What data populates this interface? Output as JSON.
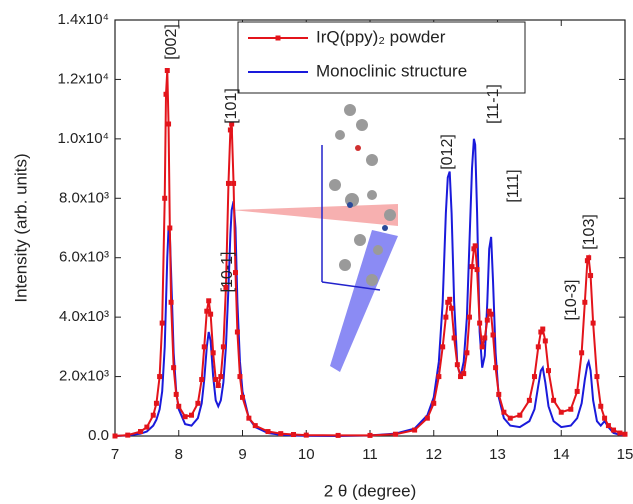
{
  "chart_data": {
    "type": "line",
    "xlabel": "2 θ (degree)",
    "ylabel": "Intensity (arb. units)",
    "x": [
      7.0,
      7.2,
      7.4,
      7.5,
      7.6,
      7.65,
      7.7,
      7.74,
      7.78,
      7.8,
      7.82,
      7.84,
      7.86,
      7.88,
      7.92,
      7.96,
      8.0,
      8.1,
      8.2,
      8.3,
      8.36,
      8.4,
      8.44,
      8.47,
      8.5,
      8.54,
      8.58,
      8.62,
      8.66,
      8.7,
      8.74,
      8.78,
      8.81,
      8.83,
      8.86,
      8.89,
      8.92,
      8.96,
      9.0,
      9.1,
      9.2,
      9.4,
      9.6,
      9.8,
      10.0,
      10.5,
      11.0,
      11.4,
      11.7,
      11.9,
      12.0,
      12.08,
      12.14,
      12.19,
      12.22,
      12.25,
      12.28,
      12.32,
      12.37,
      12.42,
      12.47,
      12.52,
      12.56,
      12.6,
      12.63,
      12.65,
      12.68,
      12.72,
      12.76,
      12.8,
      12.84,
      12.87,
      12.9,
      12.93,
      12.97,
      13.02,
      13.1,
      13.2,
      13.35,
      13.5,
      13.58,
      13.64,
      13.68,
      13.71,
      13.75,
      13.8,
      13.88,
      14.0,
      14.15,
      14.25,
      14.32,
      14.37,
      14.41,
      14.43,
      14.46,
      14.5,
      14.56,
      14.62,
      14.68,
      14.74,
      14.82,
      14.92,
      15.0
    ],
    "series": [
      {
        "name": "IrQ(ppy)₂ powder",
        "color": "#e3141b",
        "marker": "square",
        "values": [
          0,
          30,
          150,
          300,
          700,
          1100,
          2000,
          3800,
          8000,
          11500,
          12300,
          10500,
          7000,
          4500,
          2300,
          1400,
          1000,
          650,
          700,
          1100,
          1900,
          3000,
          4200,
          4550,
          4100,
          2800,
          1900,
          1700,
          2000,
          3000,
          5000,
          8500,
          10300,
          10500,
          8500,
          5500,
          3500,
          2000,
          1300,
          600,
          350,
          150,
          80,
          50,
          30,
          20,
          20,
          60,
          200,
          600,
          1100,
          2000,
          3000,
          4000,
          4500,
          4600,
          4300,
          3300,
          2400,
          2000,
          2100,
          2800,
          4000,
          5700,
          6300,
          6400,
          5600,
          3800,
          3000,
          3300,
          3900,
          4200,
          4100,
          3400,
          2300,
          1400,
          800,
          600,
          700,
          1200,
          2000,
          3000,
          3500,
          3600,
          3200,
          2200,
          1200,
          800,
          900,
          1500,
          2800,
          4500,
          5900,
          6000,
          5400,
          3800,
          2000,
          1000,
          600,
          350,
          200,
          100,
          60
        ]
      },
      {
        "name": "Monoclinic structure",
        "color": "#1a1adb",
        "values": [
          0,
          20,
          80,
          150,
          350,
          550,
          900,
          1500,
          3000,
          4500,
          6000,
          7000,
          6800,
          5500,
          2800,
          1500,
          900,
          400,
          350,
          600,
          1100,
          1900,
          3000,
          3500,
          3200,
          2000,
          1200,
          1000,
          1200,
          1800,
          3000,
          5000,
          6800,
          7600,
          7900,
          7000,
          4500,
          2500,
          1500,
          600,
          300,
          100,
          40,
          20,
          10,
          0,
          20,
          80,
          250,
          700,
          1300,
          2500,
          4500,
          7500,
          8700,
          8900,
          7500,
          4500,
          2400,
          2000,
          2500,
          4000,
          6500,
          9000,
          10000,
          9800,
          7500,
          3500,
          2300,
          2700,
          4500,
          6300,
          6700,
          5200,
          2800,
          1300,
          600,
          350,
          300,
          500,
          900,
          1700,
          2200,
          2300,
          1800,
          1000,
          500,
          300,
          350,
          600,
          1100,
          1900,
          2400,
          2500,
          2200,
          1200,
          500,
          350,
          500,
          300,
          100,
          40,
          20
        ]
      }
    ],
    "xlim": [
      7,
      15
    ],
    "xticks": [
      7,
      8,
      9,
      10,
      11,
      12,
      13,
      14,
      15
    ],
    "ylim": [
      0,
      14000
    ],
    "yticks": [
      {
        "value": 0,
        "label": "0.0"
      },
      {
        "value": 2000,
        "label": "2.0x10³"
      },
      {
        "value": 4000,
        "label": "4.0x10³"
      },
      {
        "value": 6000,
        "label": "6.0x10³"
      },
      {
        "value": 8000,
        "label": "8.0x10³"
      },
      {
        "value": 10000,
        "label": "1.0x10⁴"
      },
      {
        "value": 12000,
        "label": "1.2x10⁴"
      },
      {
        "value": 14000,
        "label": "1.4x10⁴"
      }
    ],
    "annotations": [
      "[002]",
      "[10-1]",
      "[101]",
      "[012]",
      "[11-1]",
      "[111]",
      "[10-3]",
      "[103]"
    ],
    "legend": "top-center"
  }
}
